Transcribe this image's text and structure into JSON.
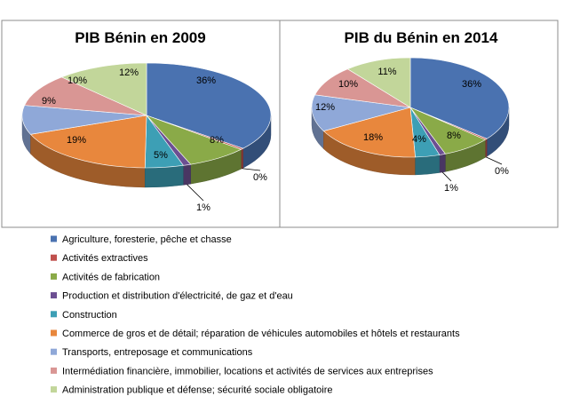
{
  "categories": [
    "Agriculture, foresterie, pêche et chasse",
    "Activités extractives",
    "Activités de fabrication",
    "Production et distribution d'électricité, de gaz et d'eau",
    "Construction",
    "Commerce de gros et de détail; réparation de véhicules automobiles et hôtels et restaurants",
    "Transports, entreposage et communications",
    "Intermédiation financière, immobilier, locations et activités de services aux entreprises",
    "Administration publique et défense; sécurité sociale obligatoire"
  ],
  "colors": [
    "#4a72b0",
    "#c0504d",
    "#8aaa48",
    "#6c4f92",
    "#3d9fb5",
    "#e8873d",
    "#8fa8d8",
    "#d99694",
    "#c2d69a"
  ],
  "chart_data": [
    {
      "type": "pie",
      "title": "PIB Bénin en 2009",
      "categories_ref": "categories",
      "values": [
        36,
        0.4,
        8,
        1,
        5,
        19,
        9,
        10,
        12
      ],
      "labels": [
        "36%",
        "0%",
        "8%",
        "1%",
        "5%",
        "19%",
        "9%",
        "10%",
        "12%"
      ],
      "three_d": true
    },
    {
      "type": "pie",
      "title": "PIB du Bénin en 2014",
      "categories_ref": "categories",
      "values": [
        36,
        0.4,
        8,
        1,
        4,
        18,
        12,
        10,
        11
      ],
      "labels": [
        "36%",
        "0%",
        "8%",
        "1%",
        "4%",
        "18%",
        "12%",
        "10%",
        "11%"
      ],
      "three_d": true
    }
  ]
}
